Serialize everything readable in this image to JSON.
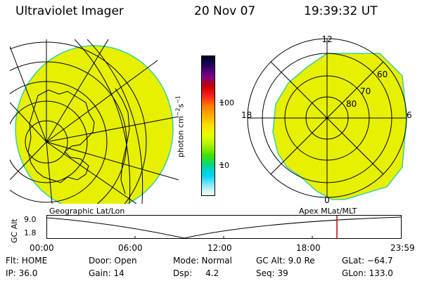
{
  "header": {
    "title": "Ultraviolet Imager",
    "date": "20 Nov 07",
    "time": "19:39:32 UT"
  },
  "colorbar": {
    "unit_main": "photon cm",
    "unit_exp1": "−2",
    "unit_mid": "s",
    "unit_exp2": "−1",
    "ticks": [
      "100",
      "10"
    ],
    "colors": [
      "#000030",
      "#2a005a",
      "#7a0090",
      "#c00000",
      "#ff2020",
      "#ff7a00",
      "#ffb000",
      "#ffe000",
      "#e6ff00",
      "#a8f000",
      "#40e000",
      "#00d890",
      "#00d0ff",
      "#90e8f0",
      "#ffffff"
    ]
  },
  "panels": {
    "left_label": "Geographic Lat/Lon",
    "right_label": "Apex MLat/MLT",
    "right_ticks": {
      "top": "12",
      "bottom": "0",
      "left": "18",
      "right": "6",
      "lat60": "60",
      "lat70": "70",
      "lat80": "80"
    },
    "fill_color": "#e6f000",
    "edge_color": "#3ad0a0"
  },
  "timeline": {
    "ylabel": "GC Alt",
    "y_ticks": [
      "9.0",
      "1.8"
    ],
    "x_ticks": [
      "00:00",
      "06:00",
      "12:00",
      "18:00",
      "23:59"
    ],
    "marker_color": "#c00000",
    "marker_time_hours": 19.66
  },
  "info": {
    "flt": "Flt: HOME",
    "ip": "IP: 36.0",
    "door": "Door: Open",
    "gain": "Gain: 14",
    "mode": "Mode: Normal",
    "dsp": "Dsp:     4.2",
    "gcalt": "GC Alt: 9.0 Re",
    "seq": "Seq: 39",
    "glat": "GLat: −64.7",
    "glon": "GLon: 133.0"
  }
}
